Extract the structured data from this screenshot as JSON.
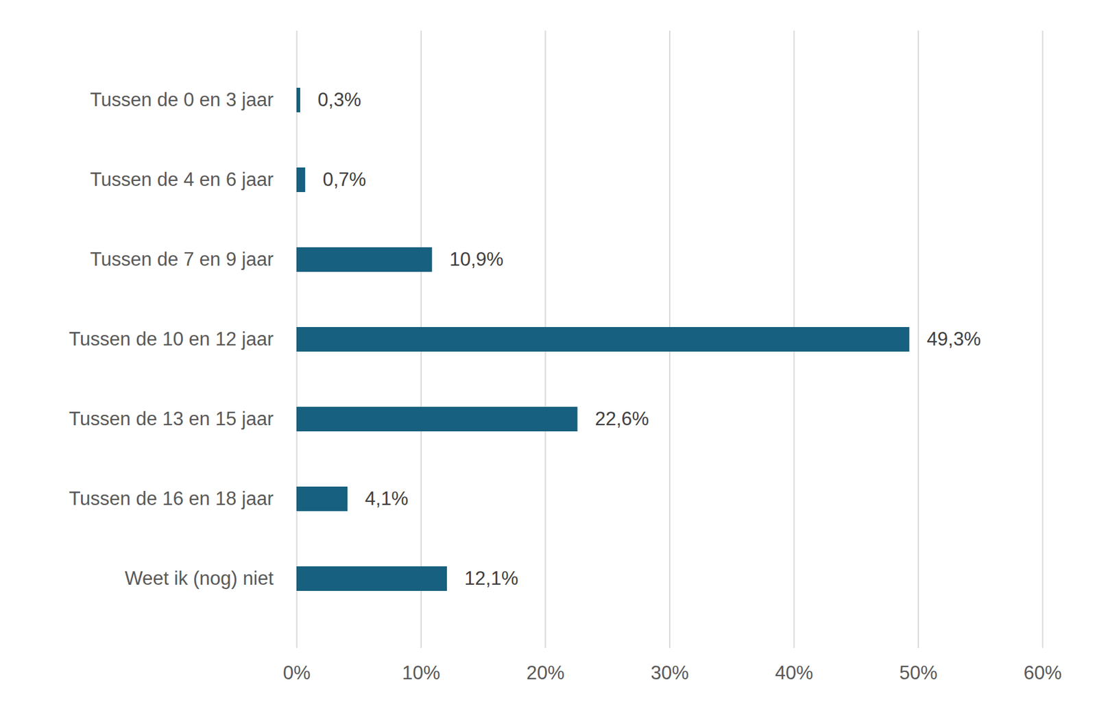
{
  "chart_data": {
    "type": "bar",
    "orientation": "horizontal",
    "categories": [
      "Tussen de 0 en 3 jaar",
      "Tussen de 4 en 6 jaar",
      "Tussen de 7 en 9 jaar",
      "Tussen de 10 en 12 jaar",
      "Tussen de 13 en 15 jaar",
      "Tussen de 16 en 18 jaar",
      "Weet ik (nog) niet"
    ],
    "values": [
      0.3,
      0.7,
      10.9,
      49.3,
      22.6,
      4.1,
      12.1
    ],
    "value_labels": [
      "0,3%",
      "0,7%",
      "10,9%",
      "49,3%",
      "22,6%",
      "4,1%",
      "12,1%"
    ],
    "data_labels": true,
    "color": "#17607f",
    "xlim": [
      0,
      60
    ],
    "xticks": [
      {
        "value": 0,
        "label": "0%"
      },
      {
        "value": 10,
        "label": "10%"
      },
      {
        "value": 20,
        "label": "20%"
      },
      {
        "value": 30,
        "label": "30%"
      },
      {
        "value": 40,
        "label": "40%"
      },
      {
        "value": 50,
        "label": "50%"
      },
      {
        "value": 60,
        "label": "60%"
      }
    ],
    "grid": true
  }
}
